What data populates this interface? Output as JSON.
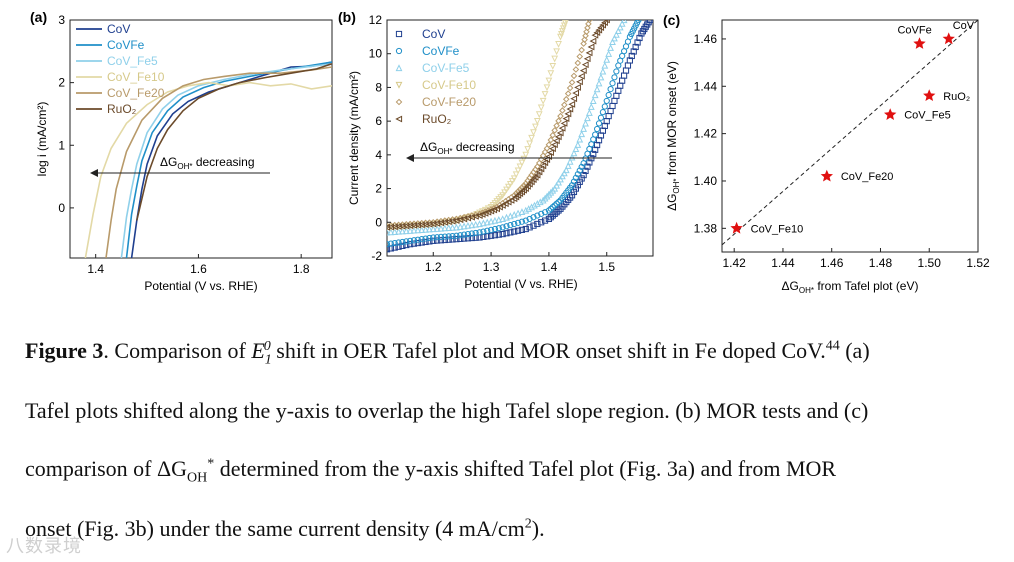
{
  "caption": {
    "figure_label": "Figure 3",
    "line1_a": ". Comparison of ",
    "e_symbol": "E",
    "e_sub": "1",
    "e_sup": "0",
    "line1_b": " shift in OER Tafel plot and MOR onset shift in Fe doped CoV.",
    "ref": "44",
    "line1_c": " (a)",
    "line2": "Tafel plots shifted along the y-axis to overlap the high Tafel slope region. (b) MOR tests and (c)",
    "line3_a": "comparison of ΔG",
    "line3_sub": "OH",
    "line3_sup": "*",
    "line3_b": " determined from the y-axis shifted Tafel plot (Fig. 3a) and from MOR",
    "line4_a": "onset (Fig. 3b) under the same current density (4 mA/cm",
    "line4_sup": "2",
    "line4_b": ")."
  },
  "watermark": "八数录境",
  "colors": {
    "CoV": "#1f3f8f",
    "CoVFe": "#1f8fc8",
    "CoV_Fe5": "#8fd0ea",
    "CoV_Fe10": "#e3d9a6",
    "CoV_Fe20": "#b89a6a",
    "RuO2": "#6b4a2a",
    "star": "#e01010"
  },
  "chart_data": [
    {
      "type": "line",
      "panel": "(a)",
      "xlabel": "Potential (V vs. RHE)",
      "ylabel": "log i (mA/cm²)",
      "xlim": [
        1.35,
        1.86
      ],
      "ylim": [
        -0.8,
        3.0
      ],
      "x_ticks": [
        "1.4",
        "1.6",
        "1.8"
      ],
      "x_tick_values": [
        1.4,
        1.6,
        1.8
      ],
      "y_ticks": [
        "0",
        "1",
        "2",
        "3"
      ],
      "y_tick_values": [
        0,
        1,
        2,
        3
      ],
      "annotation": "ΔG",
      "annotation_sub": "OH*",
      "annotation_rest": " decreasing",
      "legend": [
        "CoV",
        "CoVFe",
        "CoV_Fe5",
        "CoV_Fe10",
        "CoV_Fe20",
        "RuO₂"
      ],
      "series": [
        {
          "name": "CoV",
          "key": "CoV",
          "x": [
            1.47,
            1.48,
            1.49,
            1.5,
            1.52,
            1.55,
            1.58,
            1.62,
            1.66,
            1.7,
            1.74,
            1.78,
            1.82,
            1.86
          ],
          "y": [
            -0.8,
            -0.2,
            0.3,
            0.7,
            1.15,
            1.5,
            1.7,
            1.85,
            1.95,
            2.05,
            2.15,
            2.25,
            2.26,
            2.33
          ]
        },
        {
          "name": "CoVFe",
          "key": "CoVFe",
          "x": [
            1.46,
            1.47,
            1.48,
            1.49,
            1.51,
            1.54,
            1.57,
            1.61,
            1.65,
            1.7,
            1.75,
            1.8,
            1.86
          ],
          "y": [
            -0.8,
            -0.1,
            0.35,
            0.75,
            1.2,
            1.55,
            1.77,
            1.92,
            2.02,
            2.1,
            2.18,
            2.25,
            2.33
          ]
        },
        {
          "name": "CoV_Fe5",
          "key": "CoV_Fe5",
          "x": [
            1.45,
            1.46,
            1.47,
            1.48,
            1.5,
            1.53,
            1.56,
            1.6,
            1.65,
            1.7,
            1.76,
            1.82,
            1.86
          ],
          "y": [
            -0.8,
            -0.15,
            0.3,
            0.7,
            1.2,
            1.58,
            1.8,
            1.95,
            2.05,
            2.13,
            2.2,
            2.26,
            2.3
          ]
        },
        {
          "name": "CoV_Fe10",
          "key": "CoV_Fe10",
          "x": [
            1.38,
            1.395,
            1.41,
            1.43,
            1.46,
            1.5,
            1.54,
            1.58,
            1.62,
            1.66,
            1.7,
            1.74,
            1.78,
            1.82,
            1.86
          ],
          "y": [
            -0.8,
            -0.1,
            0.5,
            0.95,
            1.35,
            1.65,
            1.85,
            1.95,
            2.0,
            1.95,
            2.0,
            1.95,
            1.98,
            1.9,
            1.95
          ]
        },
        {
          "name": "CoV_Fe20",
          "key": "CoV_Fe20",
          "x": [
            1.42,
            1.43,
            1.44,
            1.46,
            1.49,
            1.53,
            1.57,
            1.61,
            1.65,
            1.7,
            1.76,
            1.82,
            1.86
          ],
          "y": [
            -0.8,
            -0.2,
            0.3,
            0.9,
            1.4,
            1.75,
            1.95,
            2.05,
            2.1,
            2.15,
            2.15,
            2.2,
            2.25
          ]
        },
        {
          "name": "RuO₂",
          "key": "RuO2",
          "x": [
            1.48,
            1.5,
            1.52,
            1.54,
            1.57,
            1.6,
            1.64,
            1.68,
            1.73,
            1.78,
            1.83,
            1.86
          ],
          "y": [
            -0.2,
            0.5,
            0.95,
            1.25,
            1.55,
            1.75,
            1.9,
            2.0,
            2.08,
            2.15,
            2.22,
            2.3
          ]
        }
      ]
    },
    {
      "type": "scatter",
      "panel": "(b)",
      "xlabel": "Potential (V vs. RHE)",
      "ylabel": "Current density (mA/cm²)",
      "xlim": [
        1.12,
        1.58
      ],
      "ylim": [
        -2,
        12
      ],
      "x_ticks": [
        "1.2",
        "1.3",
        "1.4",
        "1.5"
      ],
      "x_tick_values": [
        1.2,
        1.3,
        1.4,
        1.5
      ],
      "y_ticks": [
        "-2",
        "0",
        "2",
        "4",
        "6",
        "8",
        "10",
        "12"
      ],
      "y_tick_values": [
        -2,
        0,
        2,
        4,
        6,
        8,
        10,
        12
      ],
      "annotation": "ΔG",
      "annotation_sub": "OH*",
      "annotation_rest": " decreasing",
      "legend": [
        "CoV",
        "CoVFe",
        "CoV-Fe5",
        "CoV-Fe10",
        "CoV-Fe20",
        "RuO₂"
      ],
      "markers": [
        "□",
        "○",
        "△",
        "▽",
        "◇",
        "◁"
      ],
      "series": [
        {
          "name": "CoV",
          "key": "CoV",
          "x": [
            1.12,
            1.16,
            1.2,
            1.24,
            1.28,
            1.32,
            1.36,
            1.4,
            1.42,
            1.44,
            1.46,
            1.48,
            1.5,
            1.52,
            1.54,
            1.56,
            1.575
          ],
          "y": [
            -1.6,
            -1.3,
            -1.1,
            -1.0,
            -0.9,
            -0.7,
            -0.4,
            0.2,
            0.8,
            1.6,
            2.8,
            4.3,
            6.0,
            7.8,
            9.6,
            11.2,
            12.0
          ]
        },
        {
          "name": "CoVFe",
          "key": "CoVFe",
          "x": [
            1.12,
            1.16,
            1.2,
            1.24,
            1.28,
            1.32,
            1.36,
            1.4,
            1.42,
            1.44,
            1.46,
            1.48,
            1.5,
            1.52,
            1.54,
            1.555
          ],
          "y": [
            -1.3,
            -1.1,
            -0.9,
            -0.8,
            -0.6,
            -0.3,
            0.1,
            0.7,
            1.3,
            2.2,
            3.5,
            5.2,
            7.2,
            9.3,
            11.0,
            12.0
          ]
        },
        {
          "name": "CoV-Fe5",
          "key": "CoV_Fe5",
          "x": [
            1.12,
            1.16,
            1.2,
            1.24,
            1.28,
            1.32,
            1.36,
            1.39,
            1.41,
            1.43,
            1.45,
            1.47,
            1.49,
            1.51,
            1.53
          ],
          "y": [
            -0.6,
            -0.5,
            -0.4,
            -0.3,
            -0.1,
            0.2,
            0.7,
            1.3,
            2.0,
            3.1,
            4.6,
            6.5,
            8.6,
            10.7,
            12.0
          ]
        },
        {
          "name": "CoV-Fe10",
          "key": "CoV_Fe10",
          "x": [
            1.12,
            1.16,
            1.2,
            1.24,
            1.27,
            1.3,
            1.32,
            1.34,
            1.36,
            1.38,
            1.4,
            1.42,
            1.43
          ],
          "y": [
            -0.3,
            -0.2,
            -0.1,
            0.1,
            0.4,
            0.9,
            1.6,
            2.6,
            4.0,
            6.0,
            8.4,
            11.0,
            12.0
          ]
        },
        {
          "name": "CoV-Fe20",
          "key": "CoV_Fe20",
          "x": [
            1.12,
            1.16,
            1.2,
            1.24,
            1.28,
            1.31,
            1.34,
            1.36,
            1.38,
            1.4,
            1.42,
            1.44,
            1.46,
            1.47
          ],
          "y": [
            -0.2,
            -0.1,
            0.0,
            0.2,
            0.5,
            0.9,
            1.6,
            2.3,
            3.3,
            4.6,
            6.3,
            8.3,
            10.6,
            12.0
          ]
        },
        {
          "name": "RuO₂",
          "key": "RuO2",
          "x": [
            1.12,
            1.16,
            1.2,
            1.24,
            1.28,
            1.31,
            1.34,
            1.36,
            1.38,
            1.4,
            1.42,
            1.44,
            1.46,
            1.48,
            1.5
          ],
          "y": [
            -0.3,
            -0.2,
            -0.1,
            0.1,
            0.4,
            0.8,
            1.4,
            2.0,
            2.8,
            3.9,
            5.3,
            7.0,
            9.0,
            11.1,
            12.0
          ]
        }
      ]
    },
    {
      "type": "scatter",
      "panel": "(c)",
      "xlabel": "ΔG",
      "xlabel_sub": "OH*",
      "xlabel_rest": " from Tafel plot (eV)",
      "ylabel": "ΔG",
      "ylabel_sub": "OH*",
      "ylabel_rest": " from MOR onset (eV)",
      "xlim": [
        1.415,
        1.52
      ],
      "ylim": [
        1.37,
        1.468
      ],
      "x_ticks": [
        "1.42",
        "1.44",
        "1.46",
        "1.48",
        "1.50",
        "1.52"
      ],
      "x_tick_values": [
        1.42,
        1.44,
        1.46,
        1.48,
        1.5,
        1.52
      ],
      "y_ticks": [
        "1.38",
        "1.40",
        "1.42",
        "1.44",
        "1.46"
      ],
      "y_tick_values": [
        1.38,
        1.4,
        1.42,
        1.44,
        1.46
      ],
      "fit_line": {
        "x": [
          1.415,
          1.52
        ],
        "y": [
          1.373,
          1.468
        ]
      },
      "points": [
        {
          "label": "CoV",
          "x": 1.508,
          "y": 1.46
        },
        {
          "label": "CoVFe",
          "x": 1.496,
          "y": 1.458
        },
        {
          "label": "RuO₂",
          "x": 1.5,
          "y": 1.436
        },
        {
          "label": "CoV_Fe5",
          "x": 1.484,
          "y": 1.428
        },
        {
          "label": "CoV_Fe20",
          "x": 1.458,
          "y": 1.402
        },
        {
          "label": "CoV_Fe10",
          "x": 1.421,
          "y": 1.38
        }
      ]
    }
  ]
}
